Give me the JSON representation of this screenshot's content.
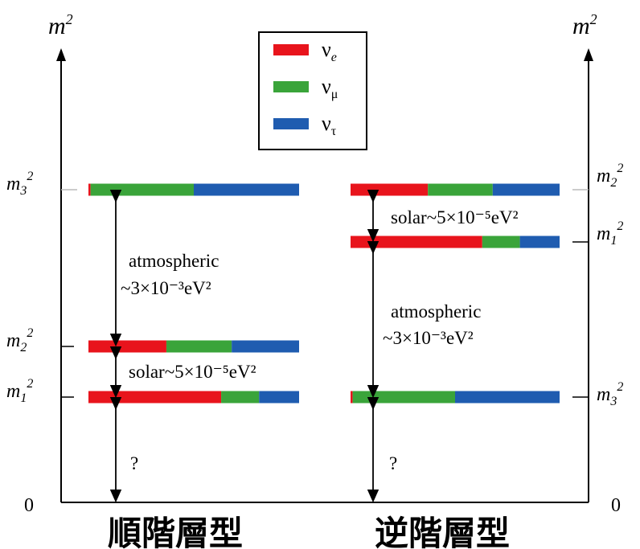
{
  "axis_title": "m²",
  "zero_label": "0",
  "legend": [
    {
      "label": "νe",
      "color": "#e8141c"
    },
    {
      "label": "νμ",
      "color": "#3aa43a"
    },
    {
      "label": "ντ",
      "color": "#1f5cb0"
    }
  ],
  "normal": {
    "caption": "順階層型",
    "levels": [
      {
        "label": "m3²",
        "fractions": [
          0.01,
          0.49,
          0.5
        ]
      },
      {
        "label": "m2²",
        "fractions": [
          0.37,
          0.31,
          0.32
        ]
      },
      {
        "label": "m1²",
        "fractions": [
          0.63,
          0.18,
          0.19
        ]
      }
    ],
    "notes": {
      "atmospheric": [
        "atmospheric",
        "~3×10⁻³eV²"
      ],
      "solar": "solar~5×10⁻⁵eV²",
      "unknown": "?"
    }
  },
  "inverted": {
    "caption": "逆階層型",
    "levels": [
      {
        "label": "m2²",
        "fractions": [
          0.37,
          0.31,
          0.32
        ]
      },
      {
        "label": "m1²",
        "fractions": [
          0.63,
          0.18,
          0.19
        ]
      },
      {
        "label": "m3²",
        "fractions": [
          0.01,
          0.49,
          0.5
        ]
      }
    ],
    "notes": {
      "solar": "solar~5×10⁻⁵eV²",
      "atmospheric": [
        "atmospheric",
        "~3×10⁻³eV²"
      ],
      "unknown": "?"
    }
  }
}
